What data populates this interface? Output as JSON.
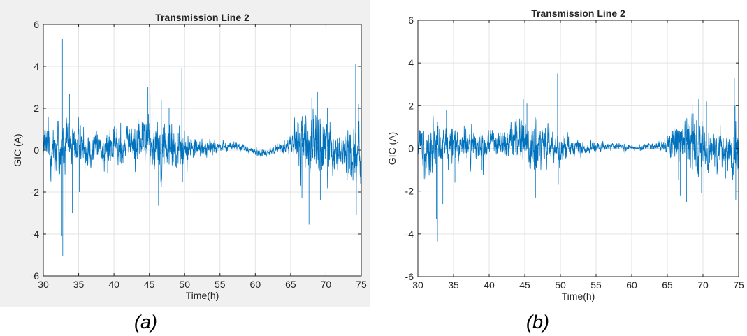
{
  "chart_data": [
    {
      "type": "line",
      "title": "Transmission Line 2",
      "xlabel": "Time(h)",
      "ylabel": "GIC (A)",
      "xlim": [
        30,
        75
      ],
      "ylim": [
        -6,
        6
      ],
      "xticks": [
        30,
        35,
        40,
        45,
        50,
        55,
        60,
        65,
        70,
        75
      ],
      "yticks": [
        -6,
        -4,
        -2,
        0,
        2,
        4,
        6
      ],
      "grid": true,
      "line_color": "#0072bd",
      "caption": "(a)",
      "noise_profile": [
        [
          30,
          0.6
        ],
        [
          32,
          1.2
        ],
        [
          34,
          0.8
        ],
        [
          38,
          0.7
        ],
        [
          42,
          0.6
        ],
        [
          44,
          0.8
        ],
        [
          46,
          1.1
        ],
        [
          48,
          0.9
        ],
        [
          50,
          0.6
        ],
        [
          52,
          0.35
        ],
        [
          55,
          0.18
        ],
        [
          60,
          0.12
        ],
        [
          63,
          0.15
        ],
        [
          65,
          0.3
        ],
        [
          66,
          0.9
        ],
        [
          68,
          1.2
        ],
        [
          72,
          0.7
        ],
        [
          74,
          1.0
        ],
        [
          75,
          0.9
        ]
      ],
      "baseline": [
        [
          30,
          0.2
        ],
        [
          33,
          0.1
        ],
        [
          36,
          0.3
        ],
        [
          40,
          0.1
        ],
        [
          44,
          0.5
        ],
        [
          47,
          0.2
        ],
        [
          50,
          0.1
        ],
        [
          53,
          0.1
        ],
        [
          57,
          0.2
        ],
        [
          61,
          -0.15
        ],
        [
          64,
          0.15
        ],
        [
          66,
          0.4
        ],
        [
          69,
          0.3
        ],
        [
          72,
          0.0
        ],
        [
          75,
          -0.2
        ]
      ],
      "spikes": [
        [
          32.7,
          5.3
        ],
        [
          32.75,
          -5.05
        ],
        [
          32.6,
          -4.1
        ],
        [
          33.2,
          -3.3
        ],
        [
          33.7,
          2.7
        ],
        [
          34.1,
          -3.0
        ],
        [
          35.1,
          -2.0
        ],
        [
          39.1,
          -1.1
        ],
        [
          44.8,
          3.0
        ],
        [
          45.1,
          2.7
        ],
        [
          46.3,
          -2.65
        ],
        [
          46.7,
          2.4
        ],
        [
          47.8,
          2.0
        ],
        [
          49.6,
          3.9
        ],
        [
          49.7,
          -1.5
        ],
        [
          66.6,
          -2.3
        ],
        [
          67.6,
          -3.55
        ],
        [
          68.0,
          2.5
        ],
        [
          68.8,
          2.8
        ],
        [
          69.2,
          -2.4
        ],
        [
          70.2,
          2.0
        ],
        [
          73.5,
          -1.2
        ],
        [
          74.2,
          4.1
        ],
        [
          74.3,
          -3.1
        ],
        [
          74.6,
          2.2
        ]
      ],
      "seed": 12345
    },
    {
      "type": "line",
      "title": "Transmission Line 2",
      "xlabel": "Time(h)",
      "ylabel": "GIC (A)",
      "xlim": [
        30,
        75
      ],
      "ylim": [
        -6,
        6
      ],
      "xticks": [
        30,
        35,
        40,
        45,
        50,
        55,
        60,
        65,
        70,
        75
      ],
      "yticks": [
        -6,
        -4,
        -2,
        0,
        2,
        4,
        6
      ],
      "grid": true,
      "line_color": "#0072bd",
      "caption": "(b)",
      "noise_profile": [
        [
          30,
          0.5
        ],
        [
          32,
          1.0
        ],
        [
          34,
          0.7
        ],
        [
          38,
          0.55
        ],
        [
          42,
          0.5
        ],
        [
          44,
          0.7
        ],
        [
          46,
          0.9
        ],
        [
          48,
          0.7
        ],
        [
          50,
          0.5
        ],
        [
          52,
          0.3
        ],
        [
          55,
          0.15
        ],
        [
          60,
          0.1
        ],
        [
          63,
          0.12
        ],
        [
          65,
          0.25
        ],
        [
          66,
          0.75
        ],
        [
          68,
          1.0
        ],
        [
          72,
          0.6
        ],
        [
          74,
          0.85
        ],
        [
          75,
          0.8
        ]
      ],
      "baseline": [
        [
          30,
          0.1
        ],
        [
          33,
          0.0
        ],
        [
          36,
          0.2
        ],
        [
          40,
          0.1
        ],
        [
          44,
          0.4
        ],
        [
          47,
          0.1
        ],
        [
          50,
          0.0
        ],
        [
          53,
          0.0
        ],
        [
          57,
          0.1
        ],
        [
          61,
          0.0
        ],
        [
          64,
          0.1
        ],
        [
          66,
          0.3
        ],
        [
          69,
          0.2
        ],
        [
          72,
          0.0
        ],
        [
          75,
          -0.2
        ]
      ],
      "spikes": [
        [
          32.7,
          4.6
        ],
        [
          32.75,
          -4.35
        ],
        [
          32.6,
          -3.3
        ],
        [
          33.5,
          -2.6
        ],
        [
          34.0,
          1.8
        ],
        [
          35.2,
          -1.6
        ],
        [
          39.0,
          -1.0
        ],
        [
          44.8,
          2.3
        ],
        [
          45.3,
          2.1
        ],
        [
          46.5,
          -2.3
        ],
        [
          49.6,
          3.5
        ],
        [
          49.7,
          -1.7
        ],
        [
          66.8,
          -2.2
        ],
        [
          67.7,
          -2.5
        ],
        [
          68.5,
          2.0
        ],
        [
          69.4,
          2.3
        ],
        [
          69.8,
          -2.1
        ],
        [
          70.5,
          2.2
        ],
        [
          73.2,
          -1.4
        ],
        [
          74.4,
          3.3
        ],
        [
          74.6,
          -2.4
        ],
        [
          74.5,
          2.0
        ]
      ],
      "seed": 67890
    }
  ]
}
